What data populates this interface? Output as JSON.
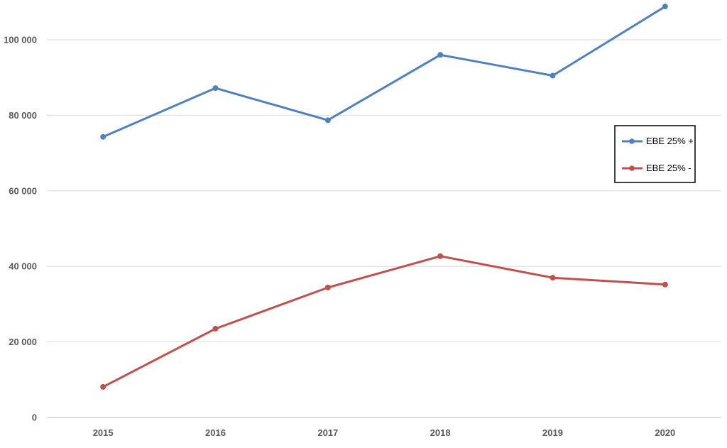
{
  "chart_data": {
    "type": "line",
    "title": "",
    "xlabel": "",
    "ylabel": "",
    "categories": [
      "2015",
      "2016",
      "2017",
      "2018",
      "2019",
      "2020"
    ],
    "ylim": [
      0,
      110000
    ],
    "yticks": [
      0,
      20000,
      40000,
      60000,
      80000,
      100000
    ],
    "ytick_labels": [
      "0",
      "20 000",
      "40 000",
      "60 000",
      "80 000",
      "100 000"
    ],
    "grid": true,
    "legend_position": "right",
    "series": [
      {
        "name": "EBE 25% +",
        "color": "#4F81BD",
        "values": [
          74300,
          87200,
          78700,
          96000,
          90500,
          108800
        ]
      },
      {
        "name": "EBE 25% -",
        "color": "#C0504D",
        "values": [
          8100,
          23500,
          34400,
          42700,
          37000,
          35200
        ]
      }
    ]
  }
}
